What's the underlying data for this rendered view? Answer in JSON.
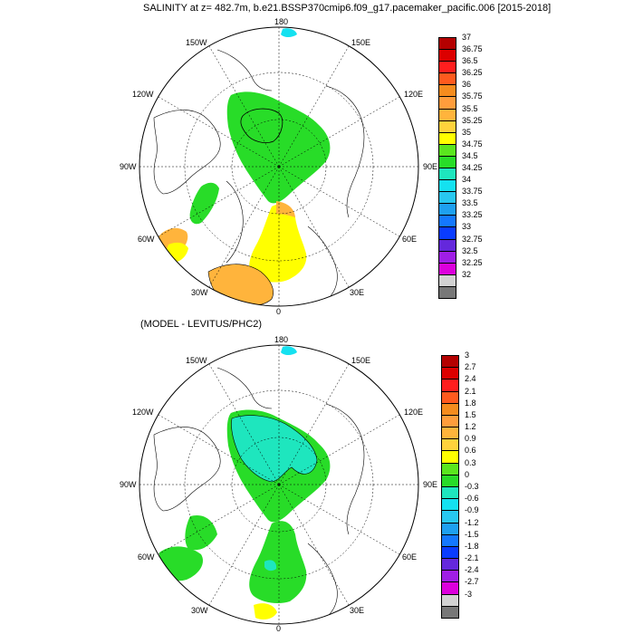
{
  "panel1": {
    "title": "SALINITY at z= 482.7m, b.e21.BSSP370cmip6.f09_g17.pacemaker_pacific.006 [2015-2018]",
    "colorbar_labels": [
      "37",
      "36.75",
      "36.5",
      "36.25",
      "36",
      "35.75",
      "35.5",
      "35.25",
      "35",
      "34.75",
      "34.5",
      "34.25",
      "34",
      "33.75",
      "33.5",
      "33.25",
      "33",
      "32.75",
      "32.5",
      "32.25",
      "32"
    ],
    "colorbar_colors": [
      "#b40000",
      "#dc0000",
      "#ff1e1e",
      "#ff5a1e",
      "#f58c1e",
      "#ff9d3c",
      "#ffb43c",
      "#ffd23c",
      "#ffff00",
      "#5ae61e",
      "#28dc28",
      "#1ee6be",
      "#14e1f0",
      "#28c8f0",
      "#1ea0f0",
      "#1478ff",
      "#0a3cff",
      "#6428dc",
      "#a01ee6",
      "#dc00dc",
      "#d2d2d2",
      "#787878"
    ],
    "lon_labels": {
      "top": "180",
      "upper_left": "150W",
      "upper_right": "150E",
      "mid_upper_left": "120W",
      "mid_upper_right": "120E",
      "left": "90W",
      "right": "90E",
      "mid_lower_left": "60W",
      "mid_lower_right": "60E",
      "lower_left": "30W",
      "lower_right": "30E",
      "bottom": "0"
    }
  },
  "panel2": {
    "title": "(MODEL - LEVITUS/PHC2)",
    "colorbar_labels": [
      "3",
      "2.7",
      "2.4",
      "2.1",
      "1.8",
      "1.5",
      "1.2",
      "0.9",
      "0.6",
      "0.3",
      "0",
      "-0.3",
      "-0.6",
      "-0.9",
      "-1.2",
      "-1.5",
      "-1.8",
      "-2.1",
      "-2.4",
      "-2.7",
      "-3"
    ],
    "colorbar_colors": [
      "#b40000",
      "#dc0000",
      "#ff1e1e",
      "#ff5a1e",
      "#f58c1e",
      "#ff9d3c",
      "#ffb43c",
      "#ffd23c",
      "#ffff00",
      "#5ae61e",
      "#28dc28",
      "#1ee6be",
      "#14e1f0",
      "#28c8f0",
      "#1ea0f0",
      "#1478ff",
      "#0a3cff",
      "#6428dc",
      "#a01ee6",
      "#dc00dc",
      "#d2d2d2",
      "#787878"
    ],
    "lon_labels": {
      "top": "180",
      "upper_left": "150W",
      "upper_right": "150E",
      "mid_upper_left": "120W",
      "mid_upper_right": "120E",
      "left": "90W",
      "right": "90E",
      "mid_lower_left": "60W",
      "mid_lower_right": "60E",
      "lower_left": "30W",
      "lower_right": "30E",
      "bottom": "0"
    }
  },
  "colors": {
    "ocean_mask": "#ffffff",
    "coast": "#000000",
    "field_green": "#28dc28",
    "field_yellow": "#ffff00",
    "field_orange": "#ffb43c",
    "field_cyan": "#1ee6be",
    "field_lightcyan": "#14e1f0"
  }
}
